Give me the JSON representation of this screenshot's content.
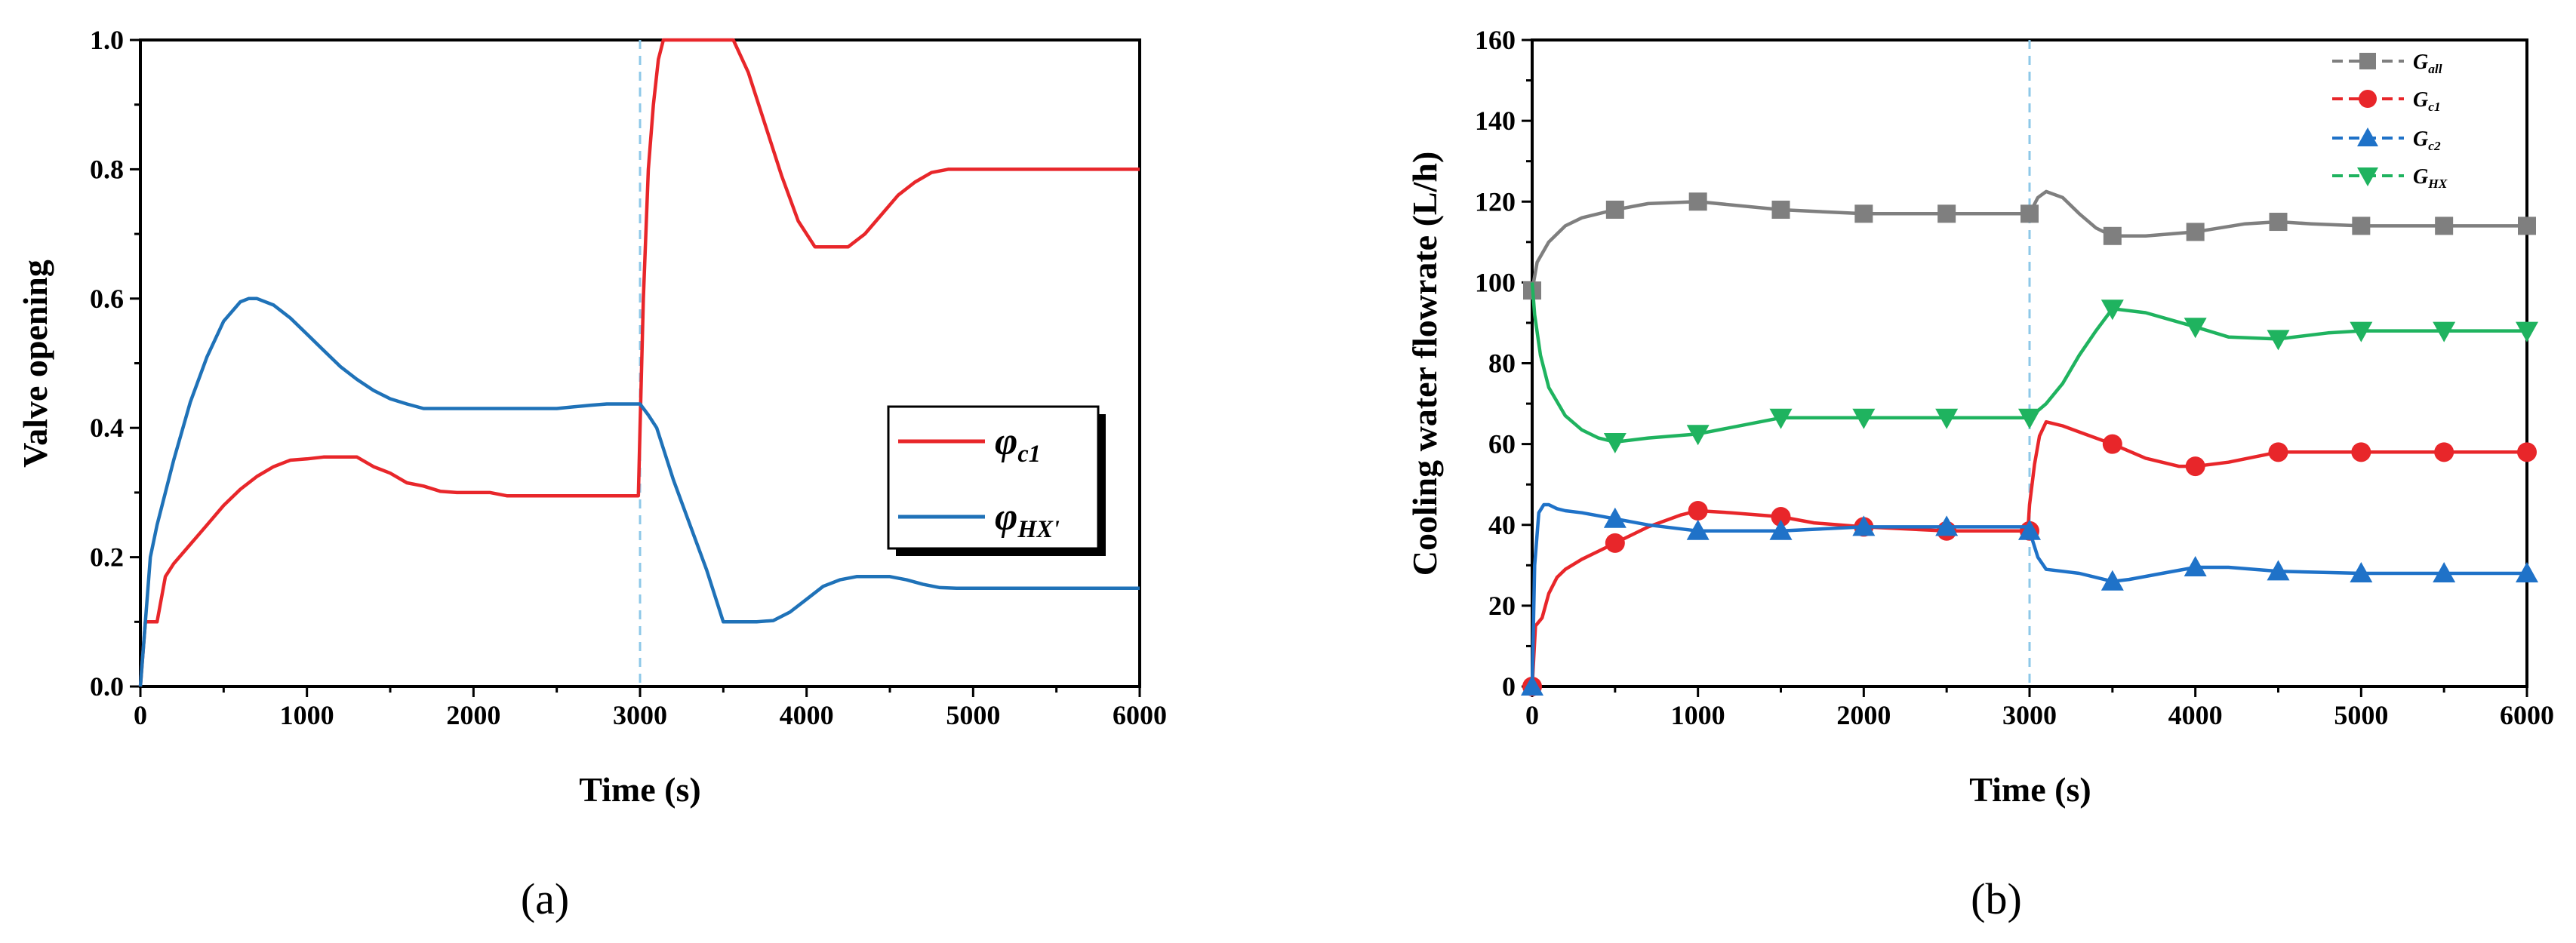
{
  "chart_data": [
    {
      "type": "line",
      "panel_label": "(a)",
      "xlabel": "Time (s)",
      "ylabel": "Valve opening",
      "xlim": [
        0,
        6000
      ],
      "ylim": [
        0,
        1.0
      ],
      "xticks": [
        0,
        1000,
        2000,
        3000,
        4000,
        5000,
        6000
      ],
      "yticks": [
        0.0,
        0.2,
        0.4,
        0.6,
        0.8,
        1.0
      ],
      "ytick_labels": [
        "0.0",
        "0.2",
        "0.4",
        "0.6",
        "0.8",
        "1.0"
      ],
      "event_line_x": 3000,
      "legend_position": "center-right",
      "series": [
        {
          "name": "φ",
          "subscript": "c1",
          "color": "#e8262a",
          "x": [
            0,
            30,
            60,
            100,
            150,
            200,
            300,
            400,
            500,
            600,
            700,
            800,
            900,
            1000,
            1100,
            1200,
            1300,
            1400,
            1500,
            1600,
            1700,
            1800,
            1900,
            2000,
            2100,
            2200,
            2500,
            2800,
            2990,
            3000,
            3020,
            3050,
            3080,
            3110,
            3140,
            3200,
            3300,
            3400,
            3500,
            3560,
            3650,
            3750,
            3850,
            3950,
            4050,
            4150,
            4200,
            4250,
            4350,
            4450,
            4550,
            4650,
            4750,
            4850,
            5000,
            6000
          ],
          "y": [
            0.0,
            0.1,
            0.1,
            0.1,
            0.17,
            0.19,
            0.22,
            0.25,
            0.28,
            0.305,
            0.325,
            0.34,
            0.35,
            0.352,
            0.355,
            0.355,
            0.355,
            0.34,
            0.33,
            0.315,
            0.31,
            0.302,
            0.3,
            0.3,
            0.3,
            0.295,
            0.295,
            0.295,
            0.295,
            0.4,
            0.6,
            0.8,
            0.9,
            0.97,
            1.0,
            1.0,
            1.0,
            1.0,
            1.0,
            1.0,
            0.95,
            0.87,
            0.79,
            0.72,
            0.68,
            0.68,
            0.68,
            0.68,
            0.7,
            0.73,
            0.76,
            0.78,
            0.795,
            0.8,
            0.8,
            0.8
          ]
        },
        {
          "name": "φ",
          "subscript": "HX'",
          "color": "#1f72b8",
          "x": [
            0,
            30,
            60,
            100,
            150,
            200,
            300,
            400,
            500,
            600,
            650,
            700,
            800,
            900,
            1000,
            1100,
            1200,
            1300,
            1400,
            1500,
            1600,
            1700,
            2000,
            2500,
            2700,
            2800,
            3000,
            3050,
            3100,
            3150,
            3200,
            3300,
            3400,
            3500,
            3600,
            3700,
            3800,
            3900,
            4000,
            4100,
            4200,
            4300,
            4400,
            4500,
            4600,
            4700,
            4800,
            4900,
            6000
          ],
          "y": [
            0.0,
            0.1,
            0.2,
            0.25,
            0.3,
            0.35,
            0.44,
            0.51,
            0.565,
            0.595,
            0.6,
            0.6,
            0.59,
            0.57,
            0.545,
            0.52,
            0.495,
            0.475,
            0.458,
            0.445,
            0.437,
            0.43,
            0.43,
            0.43,
            0.435,
            0.437,
            0.437,
            0.42,
            0.4,
            0.36,
            0.32,
            0.25,
            0.18,
            0.1,
            0.1,
            0.1,
            0.102,
            0.115,
            0.135,
            0.155,
            0.165,
            0.17,
            0.17,
            0.17,
            0.165,
            0.158,
            0.153,
            0.152,
            0.152
          ]
        }
      ]
    },
    {
      "type": "line",
      "panel_label": "(b)",
      "xlabel": "Time (s)",
      "ylabel": "Cooling water flowrate (L/h)",
      "xlim": [
        0,
        6000
      ],
      "ylim": [
        0,
        160
      ],
      "xticks": [
        0,
        1000,
        2000,
        3000,
        4000,
        5000,
        6000
      ],
      "yticks": [
        0,
        20,
        40,
        60,
        80,
        100,
        120,
        140,
        160
      ],
      "ytick_labels": [
        "0",
        "20",
        "40",
        "60",
        "80",
        "100",
        "120",
        "140",
        "160"
      ],
      "event_line_x": 3000,
      "legend_position": "top-right",
      "series": [
        {
          "name": "G",
          "subscript": "all",
          "color": "#7f7f7f",
          "marker": "square",
          "x": [
            0,
            30,
            100,
            200,
            300,
            500,
            700,
            1000,
            1500,
            2000,
            2500,
            3000,
            3050,
            3100,
            3200,
            3300,
            3400,
            3500,
            3700,
            4000,
            4300,
            4500,
            4700,
            5000,
            5500,
            6000
          ],
          "y": [
            98,
            105,
            110,
            114,
            116,
            118,
            119.5,
            120,
            118,
            117,
            117,
            117,
            121,
            122.5,
            121,
            117,
            113.5,
            111.5,
            111.5,
            112.5,
            114.5,
            115,
            114.5,
            114,
            114,
            114
          ],
          "marker_x": [
            0,
            500,
            1000,
            1500,
            2000,
            2500,
            3000,
            3500,
            4000,
            4500,
            5000,
            5500,
            6000
          ],
          "marker_y": [
            98,
            118,
            120,
            118,
            117,
            117,
            117,
            111.5,
            112.5,
            115,
            114,
            114,
            114
          ]
        },
        {
          "name": "G",
          "subscript": "c1",
          "color": "#e8262a",
          "marker": "circle",
          "x": [
            0,
            20,
            60,
            100,
            150,
            200,
            300,
            400,
            500,
            600,
            700,
            800,
            900,
            1000,
            1200,
            1500,
            1700,
            2000,
            2500,
            2990,
            3000,
            3030,
            3060,
            3100,
            3200,
            3300,
            3500,
            3700,
            3900,
            4000,
            4200,
            4500,
            4800,
            5000,
            5500,
            6000
          ],
          "y": [
            0,
            15,
            17,
            23,
            27,
            29,
            31.5,
            33.5,
            35.5,
            37.5,
            39.5,
            41,
            42.5,
            43.5,
            43,
            42,
            40.5,
            39.5,
            38.5,
            38.5,
            45,
            55,
            62,
            65.5,
            64.5,
            63,
            60,
            56.5,
            54.5,
            54.5,
            55.5,
            58,
            58,
            58,
            58,
            58
          ],
          "marker_x": [
            0,
            500,
            1000,
            1500,
            2000,
            2500,
            3000,
            3500,
            4000,
            4500,
            5000,
            5500,
            6000
          ],
          "marker_y": [
            0,
            35.5,
            43.5,
            42,
            39.5,
            38.5,
            38.5,
            60,
            54.5,
            58,
            58,
            58,
            58
          ]
        },
        {
          "name": "G",
          "subscript": "c2",
          "color": "#1f72c8",
          "marker": "triangle-up",
          "x": [
            0,
            15,
            40,
            70,
            100,
            150,
            200,
            300,
            500,
            700,
            1000,
            1500,
            2000,
            2500,
            2990,
            3000,
            3050,
            3100,
            3200,
            3300,
            3500,
            3600,
            3800,
            4000,
            4200,
            4500,
            5000,
            5500,
            6000
          ],
          "y": [
            0,
            30,
            43,
            45,
            45,
            44,
            43.5,
            43,
            41.5,
            40,
            38.5,
            38.5,
            39.5,
            39.5,
            39.5,
            38.5,
            32,
            29,
            28.5,
            28,
            26,
            26.5,
            28,
            29.5,
            29.5,
            28.5,
            28,
            28,
            28
          ],
          "marker_x": [
            0,
            500,
            1000,
            1500,
            2000,
            2500,
            3000,
            3500,
            4000,
            4500,
            5000,
            5500,
            6000
          ],
          "marker_y": [
            0,
            41.5,
            38.5,
            38.5,
            39.5,
            39.5,
            38.5,
            26,
            29.5,
            28.5,
            28,
            28,
            28
          ]
        },
        {
          "name": "G",
          "subscript": "HX",
          "color": "#1fb35f",
          "marker": "triangle-down",
          "x": [
            0,
            15,
            50,
            100,
            200,
            300,
            400,
            500,
            700,
            1000,
            1500,
            2000,
            2500,
            3000,
            3100,
            3200,
            3300,
            3400,
            3500,
            3700,
            4000,
            4200,
            4500,
            4800,
            5000,
            5500,
            6000
          ],
          "y": [
            100,
            92,
            82,
            74,
            67,
            63.5,
            61.5,
            60.5,
            61.5,
            62.5,
            66.5,
            66.5,
            66.5,
            66.5,
            70,
            75,
            82,
            88,
            93.5,
            92.5,
            89,
            86.5,
            86,
            87.5,
            88,
            88,
            88
          ],
          "marker_x": [
            500,
            1000,
            1500,
            2000,
            2500,
            3000,
            3500,
            4000,
            4500,
            5000,
            5500,
            6000
          ],
          "marker_y": [
            60.5,
            62.5,
            66.5,
            66.5,
            66.5,
            66.5,
            93.5,
            89,
            86,
            88,
            88,
            88
          ]
        }
      ]
    }
  ]
}
